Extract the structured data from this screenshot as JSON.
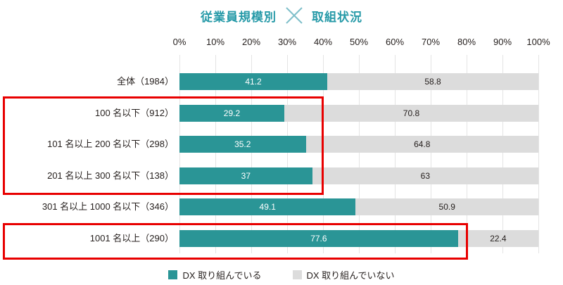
{
  "title": {
    "left": "従業員規模別",
    "separator": "×",
    "right": "取組状況"
  },
  "colors": {
    "bar_engaged": "#2a9596",
    "bar_not_engaged": "#dcdcdc",
    "title_text": "#279aa8",
    "cross_icon": "#7fbfca",
    "highlight_border": "#e80000",
    "gridline": "#e4e4e4",
    "value_on_engaged": "#ffffff",
    "value_on_not_engaged": "#241e1c"
  },
  "chart_data": {
    "type": "bar",
    "orientation": "horizontal",
    "stacked": true,
    "title": "従業員規模別 × 取組状況",
    "categories": [
      "全体（1984）",
      "100 名以下（912）",
      "101 名以上 200 名以下（298）",
      "201 名以上 300 名以下（138）",
      "301 名以上 1000 名以下（346）",
      "1001 名以上（290）"
    ],
    "series": [
      {
        "name": "DX 取り組んでいる",
        "color": "#2a9596",
        "values": [
          41.2,
          29.2,
          35.2,
          37,
          49.1,
          77.6
        ]
      },
      {
        "name": "DX 取り組んでいない",
        "color": "#dcdcdc",
        "values": [
          58.8,
          70.8,
          64.8,
          63,
          50.9,
          22.4
        ]
      }
    ],
    "value_labels": [
      [
        "41.2",
        "58.8"
      ],
      [
        "29.2",
        "70.8"
      ],
      [
        "35.2",
        "64.8"
      ],
      [
        "37",
        "63"
      ],
      [
        "49.1",
        "50.9"
      ],
      [
        "77.6",
        "22.4"
      ]
    ],
    "x_ticks": [
      "0%",
      "10%",
      "20%",
      "30%",
      "40%",
      "50%",
      "60%",
      "70%",
      "80%",
      "90%",
      "100%"
    ],
    "xlim": [
      0,
      100
    ],
    "grid": true,
    "legend_position": "bottom",
    "highlighted_row_groups": [
      {
        "rows": [
          "100 名以下（912）",
          "101 名以上 200 名以下（298）",
          "201 名以上 300 名以下（138）"
        ]
      },
      {
        "rows": [
          "1001 名以上（290）"
        ]
      }
    ]
  },
  "legend": {
    "items": [
      {
        "label": "DX 取り組んでいる",
        "color": "#2a9596"
      },
      {
        "label": "DX 取り組んでいない",
        "color": "#dcdcdc"
      }
    ]
  }
}
